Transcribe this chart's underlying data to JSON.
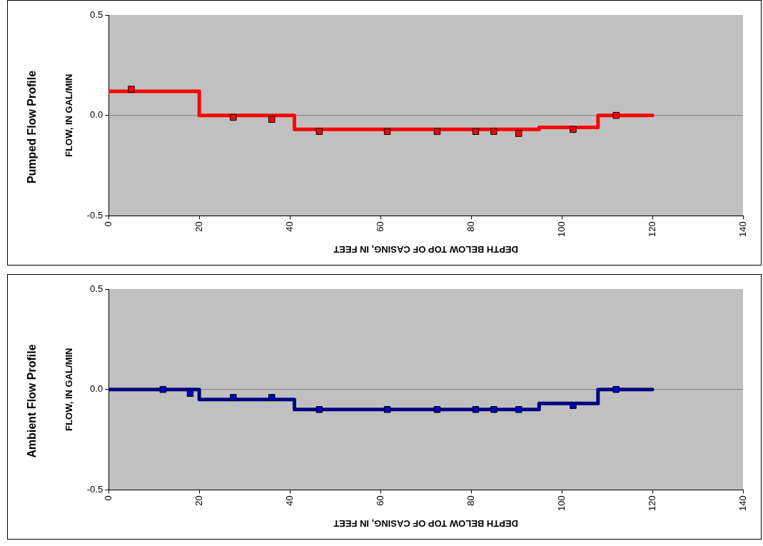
{
  "chart_data": [
    {
      "type": "step",
      "title": "Pumped Flow Profile",
      "xlabel": "DEPTH BELOW TOP OF CASING, IN FEET",
      "ylabel": "FLOW, IN GAL/MIN",
      "xlim": [
        0,
        140
      ],
      "xticks": [
        0,
        20,
        40,
        60,
        80,
        100,
        120,
        140
      ],
      "ylim": [
        -0.5,
        0.5
      ],
      "yticks": [
        {
          "value": -0.5,
          "label": "-0.5"
        },
        {
          "value": 0,
          "label": "0.0"
        },
        {
          "value": 0.5,
          "label": "0.5"
        }
      ],
      "grid": false,
      "legend": false,
      "ref_lines": [
        {
          "axis": "y",
          "value": 0,
          "color": "#808080"
        }
      ],
      "series": [
        {
          "color": "#ff0000",
          "x": [
            0,
            20,
            41,
            95,
            108,
            120
          ],
          "values": [
            0.12,
            0,
            -0.07,
            -0.06,
            0,
            0
          ]
        },
        {
          "type": "scatter",
          "marker": "square",
          "color": "#ff0000",
          "x": [
            5,
            27.5,
            36,
            46.5,
            61.5,
            72.5,
            81,
            85,
            90.5,
            102.5,
            112
          ],
          "values": [
            0.13,
            -0.01,
            -0.02,
            -0.08,
            -0.08,
            -0.08,
            -0.08,
            -0.08,
            -0.09,
            -0.07,
            0
          ]
        }
      ]
    },
    {
      "type": "step",
      "title": "Ambient Flow Profile",
      "xlabel": "DEPTH BELOW TOP OF CASING, IN FEET",
      "ylabel": "FLOW, IN GAL/MIN",
      "xlim": [
        0,
        140
      ],
      "xticks": [
        0,
        20,
        40,
        60,
        80,
        100,
        120,
        140
      ],
      "ylim": [
        -0.5,
        0.5
      ],
      "yticks": [
        {
          "value": -0.5,
          "label": "-0.5"
        },
        {
          "value": 0,
          "label": "0.0"
        },
        {
          "value": 0.5,
          "label": "0.5"
        }
      ],
      "grid": false,
      "legend": false,
      "ref_lines": [
        {
          "axis": "y",
          "value": 0,
          "color": "#808080"
        }
      ],
      "series": [
        {
          "color": "#000080",
          "x": [
            0,
            20,
            41,
            95,
            108,
            120
          ],
          "values": [
            0,
            -0.05,
            -0.1,
            -0.07,
            0,
            0
          ]
        },
        {
          "type": "scatter",
          "marker": "square",
          "color": "#0000cc",
          "x": [
            12,
            18,
            27.5,
            36,
            46.5,
            61.5,
            72.5,
            81,
            85,
            90.5,
            102.5,
            112
          ],
          "values": [
            0,
            -0.02,
            -0.04,
            -0.04,
            -0.1,
            -0.1,
            -0.1,
            -0.1,
            -0.1,
            -0.1,
            -0.08,
            0
          ]
        }
      ]
    }
  ]
}
